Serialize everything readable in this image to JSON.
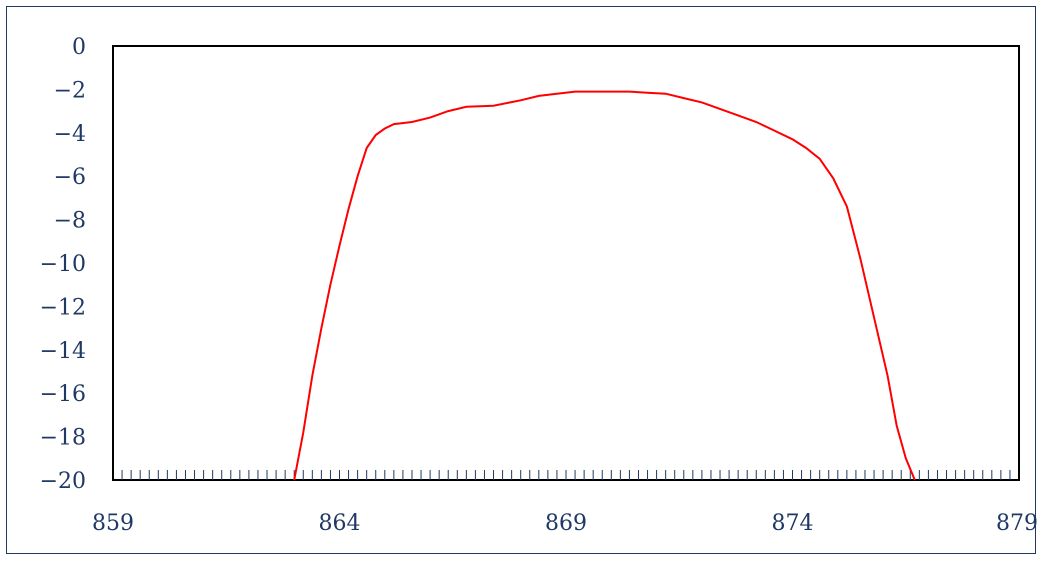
{
  "chart_data": {
    "type": "line",
    "title": "",
    "xlabel": "",
    "ylabel": "",
    "xlim": [
      859,
      879
    ],
    "ylim": [
      -20,
      0
    ],
    "x_ticks": [
      859,
      864,
      869,
      874,
      879
    ],
    "x_tick_labels": [
      "859",
      "864",
      "869",
      "874",
      "879"
    ],
    "y_ticks": [
      0,
      -2,
      -4,
      -6,
      -8,
      -10,
      -12,
      -14,
      -16,
      -18,
      -20
    ],
    "y_tick_labels": [
      "0",
      "−2",
      "−4",
      "−6",
      "−8",
      "−10",
      "−12",
      "−14",
      "−16",
      "−18",
      "−20"
    ],
    "minor_tick_step": 0.2,
    "grid": false,
    "legend": "none",
    "colors": {
      "series": "#ff0000",
      "axis": "#000000",
      "labels": "#1f3864",
      "frame": "#1f3864"
    },
    "series": [
      {
        "x": [
          863,
          863.2,
          863.4,
          863.6,
          863.8,
          864.0,
          864.2,
          864.4,
          864.6,
          864.8,
          865.0,
          865.2,
          865.6,
          866.0,
          866.4,
          866.8,
          867.4,
          868.0,
          868.4,
          868.8,
          869.2,
          869.6,
          870.0,
          870.4,
          870.8,
          871.2,
          871.6,
          872.0,
          872.4,
          872.8,
          873.2,
          873.6,
          874.0,
          874.3,
          874.6,
          874.9,
          875.2,
          875.5,
          875.8,
          876.1,
          876.3,
          876.5,
          876.7
        ],
        "y": [
          -20,
          -17.8,
          -15.2,
          -13.0,
          -11.0,
          -9.2,
          -7.5,
          -6.0,
          -4.7,
          -4.1,
          -3.8,
          -3.6,
          -3.5,
          -3.3,
          -3.0,
          -2.8,
          -2.75,
          -2.5,
          -2.3,
          -2.2,
          -2.1,
          -2.1,
          -2.1,
          -2.1,
          -2.15,
          -2.2,
          -2.4,
          -2.6,
          -2.9,
          -3.2,
          -3.5,
          -3.9,
          -4.3,
          -4.7,
          -5.2,
          -6.1,
          -7.4,
          -9.8,
          -12.5,
          -15.2,
          -17.5,
          -19.0,
          -20
        ]
      }
    ]
  }
}
